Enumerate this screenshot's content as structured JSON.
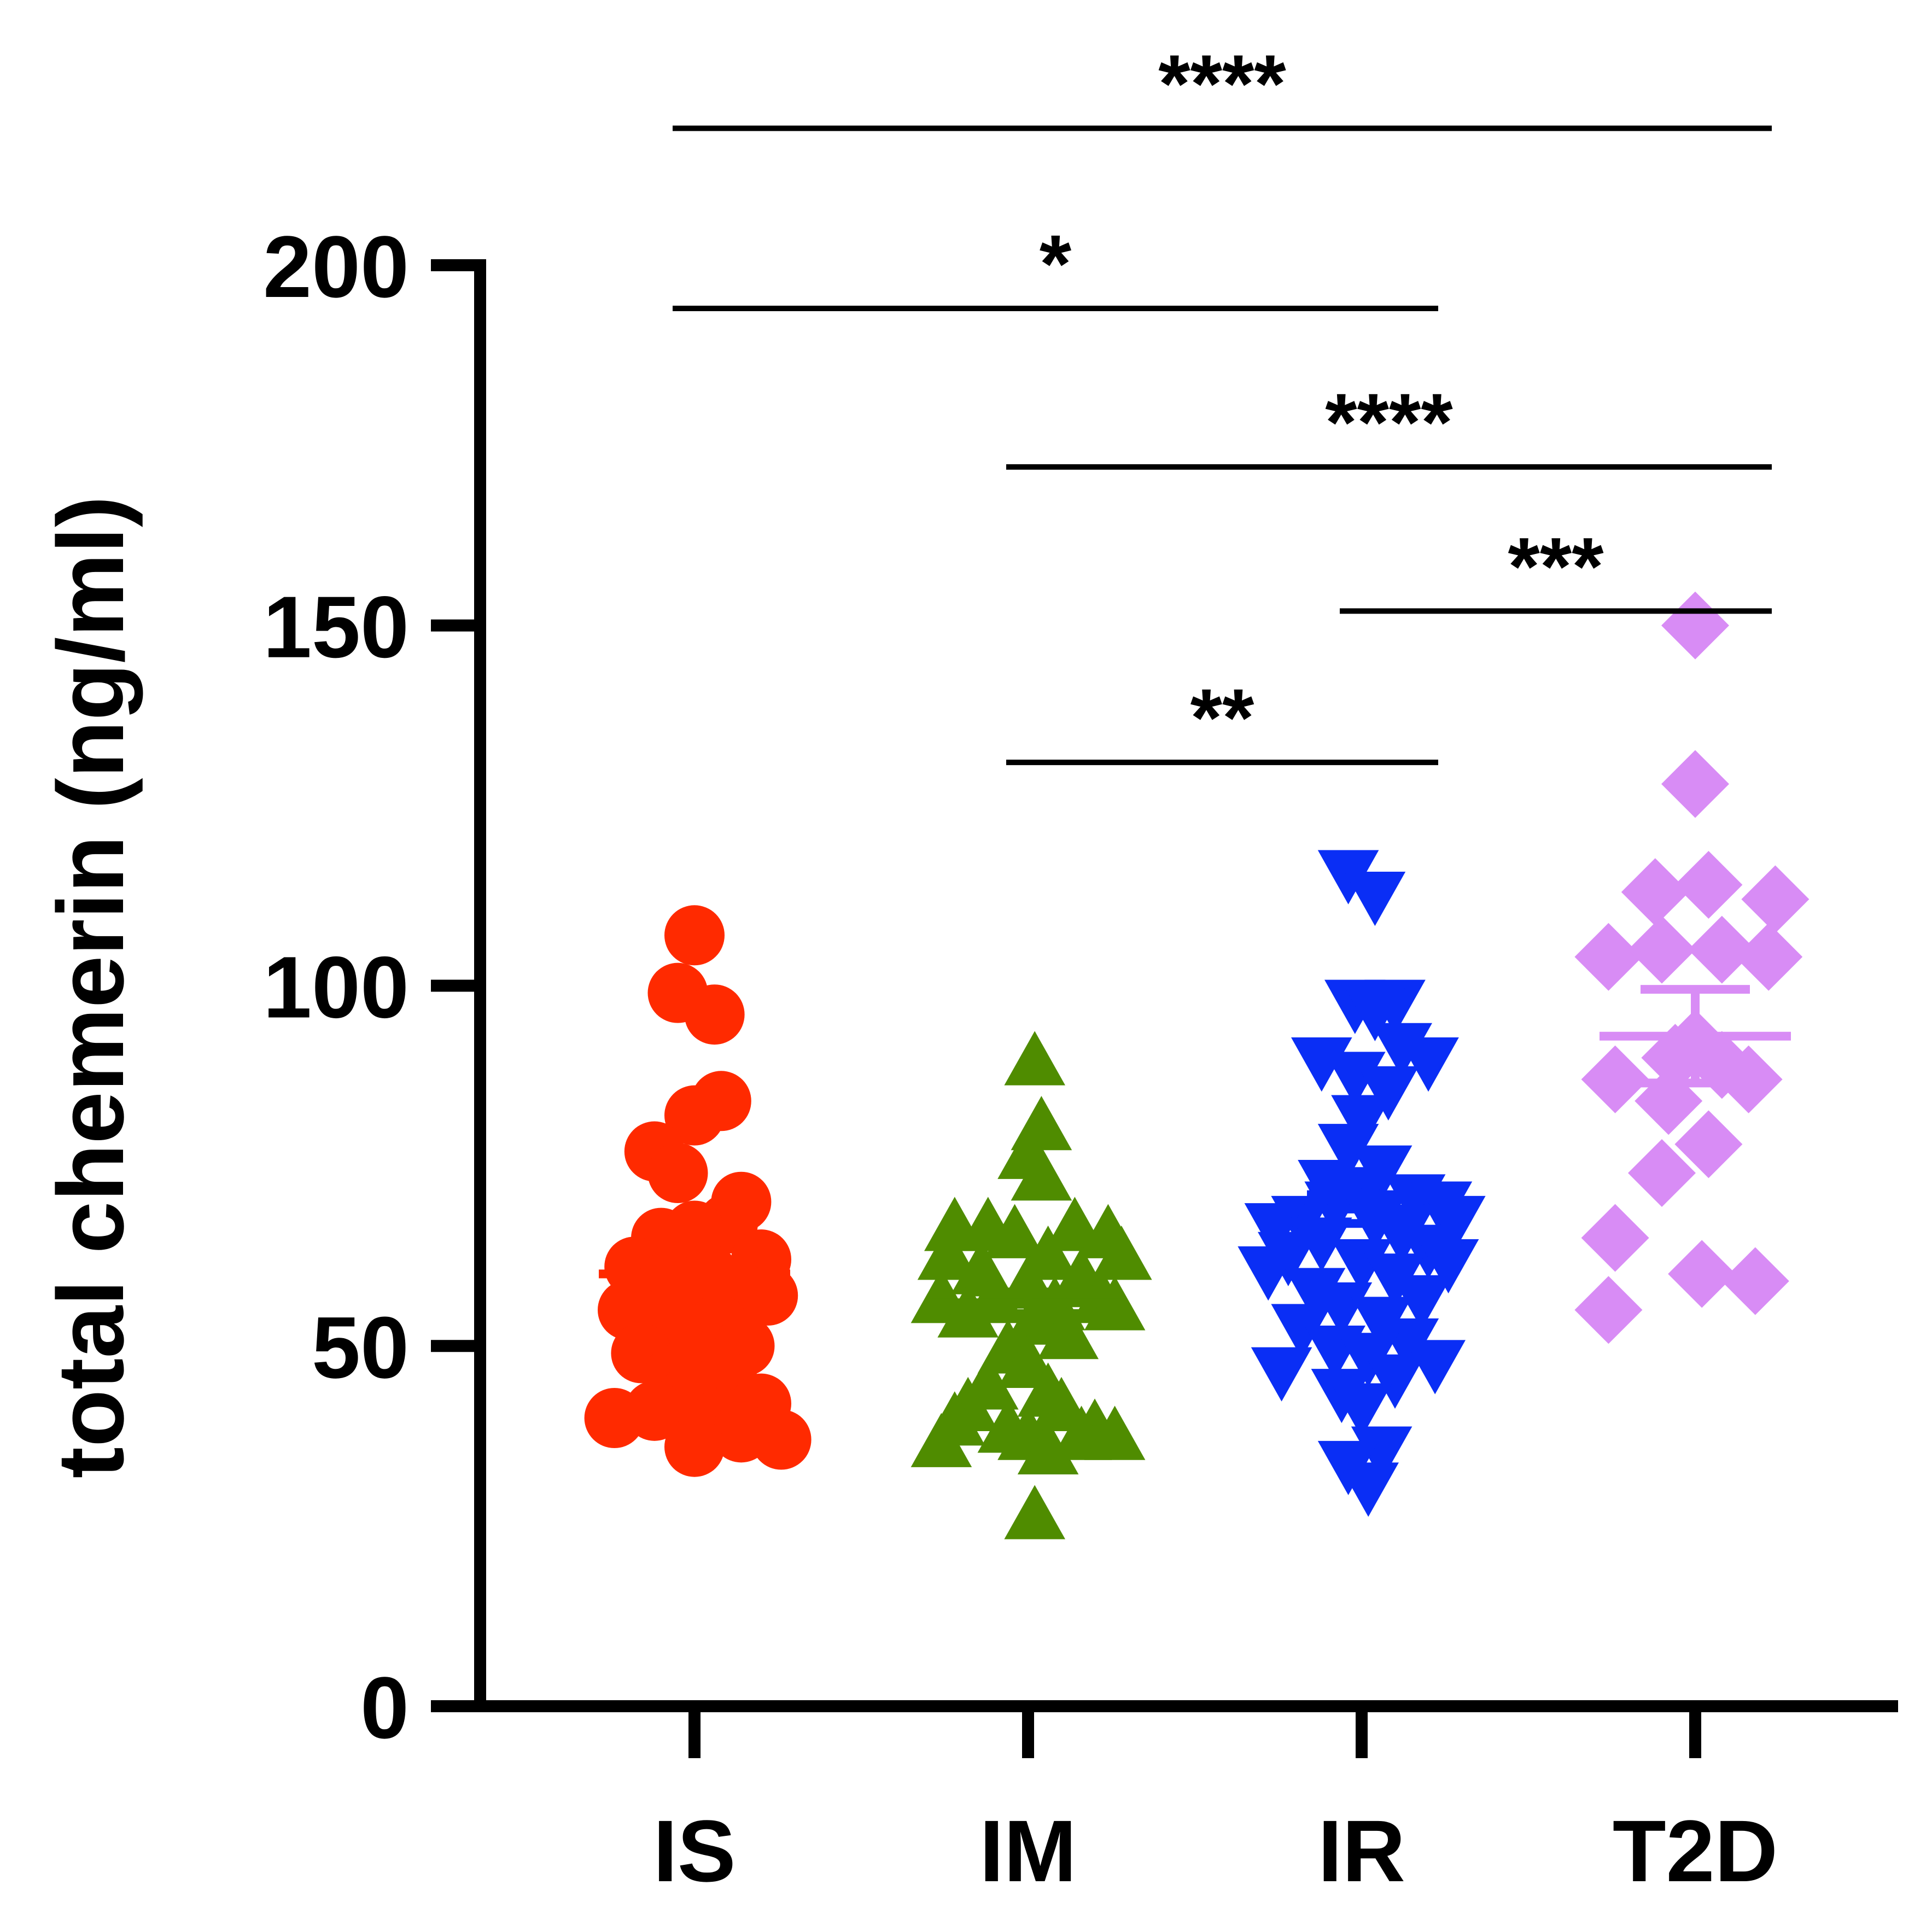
{
  "chart_data": {
    "type": "scatter",
    "ylabel": "total chemerin (ng/ml)",
    "xlabel": "",
    "ylim": [
      0,
      200
    ],
    "yticks": [
      0,
      50,
      100,
      150,
      200
    ],
    "categories": [
      "IS",
      "IM",
      "IR",
      "T2D"
    ],
    "series": [
      {
        "category": "IS",
        "marker": "circle",
        "color": "#ff2a00",
        "mean": 60,
        "sem": 1.5,
        "points": [
          {
            "x": 0.0,
            "y": 107
          },
          {
            "x": -0.05,
            "y": 99
          },
          {
            "x": 0.06,
            "y": 96
          },
          {
            "x": 0.08,
            "y": 84
          },
          {
            "x": 0.0,
            "y": 82
          },
          {
            "x": -0.12,
            "y": 77
          },
          {
            "x": -0.05,
            "y": 74
          },
          {
            "x": 0.14,
            "y": 70
          },
          {
            "x": 0.1,
            "y": 67
          },
          {
            "x": -0.1,
            "y": 65
          },
          {
            "x": 0.0,
            "y": 66
          },
          {
            "x": 0.2,
            "y": 62
          },
          {
            "x": -0.18,
            "y": 61
          },
          {
            "x": 0.04,
            "y": 60
          },
          {
            "x": -0.08,
            "y": 59
          },
          {
            "x": 0.14,
            "y": 58
          },
          {
            "x": -0.03,
            "y": 57
          },
          {
            "x": 0.22,
            "y": 57
          },
          {
            "x": -0.2,
            "y": 55
          },
          {
            "x": 0.07,
            "y": 53
          },
          {
            "x": -0.1,
            "y": 51
          },
          {
            "x": 0.15,
            "y": 50
          },
          {
            "x": -0.16,
            "y": 49
          },
          {
            "x": 0.0,
            "y": 48
          },
          {
            "x": -0.06,
            "y": 46
          },
          {
            "x": 0.1,
            "y": 45
          },
          {
            "x": -0.02,
            "y": 43
          },
          {
            "x": 0.2,
            "y": 42
          },
          {
            "x": -0.12,
            "y": 41
          },
          {
            "x": 0.08,
            "y": 40
          },
          {
            "x": -0.24,
            "y": 40
          },
          {
            "x": 0.14,
            "y": 38
          },
          {
            "x": 0.26,
            "y": 37
          },
          {
            "x": 0.0,
            "y": 36
          }
        ]
      },
      {
        "category": "IM",
        "marker": "triangle-up",
        "color": "#4f8c00",
        "mean": 56,
        "sem": 1.5,
        "points": [
          {
            "x": 0.02,
            "y": 89
          },
          {
            "x": 0.04,
            "y": 80
          },
          {
            "x": 0.0,
            "y": 76
          },
          {
            "x": 0.04,
            "y": 73
          },
          {
            "x": -0.22,
            "y": 66
          },
          {
            "x": -0.12,
            "y": 66
          },
          {
            "x": 0.14,
            "y": 66
          },
          {
            "x": 0.24,
            "y": 65
          },
          {
            "x": -0.04,
            "y": 65
          },
          {
            "x": -0.24,
            "y": 62
          },
          {
            "x": 0.28,
            "y": 62
          },
          {
            "x": 0.06,
            "y": 62
          },
          {
            "x": -0.14,
            "y": 60
          },
          {
            "x": 0.16,
            "y": 59
          },
          {
            "x": 0.0,
            "y": 58
          },
          {
            "x": -0.26,
            "y": 56
          },
          {
            "x": -0.1,
            "y": 56
          },
          {
            "x": 0.22,
            "y": 56
          },
          {
            "x": 0.08,
            "y": 55
          },
          {
            "x": 0.26,
            "y": 55
          },
          {
            "x": -0.18,
            "y": 54
          },
          {
            "x": 0.02,
            "y": 53
          },
          {
            "x": 0.12,
            "y": 51
          },
          {
            "x": -0.06,
            "y": 49
          },
          {
            "x": 0.0,
            "y": 47
          },
          {
            "x": -0.12,
            "y": 44
          },
          {
            "x": 0.06,
            "y": 43
          },
          {
            "x": -0.18,
            "y": 41
          },
          {
            "x": 0.1,
            "y": 41
          },
          {
            "x": -0.22,
            "y": 39
          },
          {
            "x": -0.06,
            "y": 38
          },
          {
            "x": 0.2,
            "y": 38
          },
          {
            "x": 0.0,
            "y": 37
          },
          {
            "x": 0.16,
            "y": 37
          },
          {
            "x": 0.26,
            "y": 37
          },
          {
            "x": -0.26,
            "y": 36
          },
          {
            "x": 0.06,
            "y": 35
          },
          {
            "x": 0.02,
            "y": 26
          }
        ]
      },
      {
        "category": "IR",
        "marker": "triangle-down",
        "color": "#0a2ef5",
        "mean": 69,
        "sem": 2.0,
        "points": [
          {
            "x": -0.04,
            "y": 116
          },
          {
            "x": 0.04,
            "y": 113
          },
          {
            "x": -0.02,
            "y": 98
          },
          {
            "x": 0.1,
            "y": 98
          },
          {
            "x": 0.04,
            "y": 97
          },
          {
            "x": 0.12,
            "y": 92
          },
          {
            "x": -0.12,
            "y": 90
          },
          {
            "x": 0.2,
            "y": 90
          },
          {
            "x": -0.02,
            "y": 88
          },
          {
            "x": 0.08,
            "y": 86
          },
          {
            "x": 0.0,
            "y": 82
          },
          {
            "x": -0.04,
            "y": 78
          },
          {
            "x": 0.06,
            "y": 75
          },
          {
            "x": -0.1,
            "y": 73
          },
          {
            "x": 0.0,
            "y": 72
          },
          {
            "x": 0.16,
            "y": 71
          },
          {
            "x": -0.08,
            "y": 70
          },
          {
            "x": 0.24,
            "y": 70
          },
          {
            "x": -0.18,
            "y": 68
          },
          {
            "x": 0.04,
            "y": 68
          },
          {
            "x": 0.28,
            "y": 68
          },
          {
            "x": -0.26,
            "y": 67
          },
          {
            "x": 0.12,
            "y": 66
          },
          {
            "x": -0.12,
            "y": 65
          },
          {
            "x": 0.2,
            "y": 64
          },
          {
            "x": -0.22,
            "y": 63
          },
          {
            "x": 0.0,
            "y": 62
          },
          {
            "x": 0.26,
            "y": 62
          },
          {
            "x": -0.28,
            "y": 61
          },
          {
            "x": 0.1,
            "y": 60
          },
          {
            "x": -0.14,
            "y": 58
          },
          {
            "x": 0.18,
            "y": 57
          },
          {
            "x": -0.06,
            "y": 56
          },
          {
            "x": 0.06,
            "y": 54
          },
          {
            "x": -0.18,
            "y": 53
          },
          {
            "x": 0.14,
            "y": 51
          },
          {
            "x": -0.08,
            "y": 50
          },
          {
            "x": 0.02,
            "y": 49
          },
          {
            "x": 0.22,
            "y": 48
          },
          {
            "x": -0.24,
            "y": 47
          },
          {
            "x": 0.1,
            "y": 46
          },
          {
            "x": -0.06,
            "y": 44
          },
          {
            "x": 0.0,
            "y": 42
          },
          {
            "x": 0.06,
            "y": 36
          },
          {
            "x": -0.04,
            "y": 34
          },
          {
            "x": 0.02,
            "y": 31
          }
        ]
      },
      {
        "category": "T2D",
        "marker": "diamond",
        "color": "#d88cf5",
        "mean": 93,
        "sem": 6.5,
        "points": [
          {
            "x": 0.0,
            "y": 150
          },
          {
            "x": 0.0,
            "y": 128
          },
          {
            "x": -0.12,
            "y": 113
          },
          {
            "x": 0.04,
            "y": 114
          },
          {
            "x": 0.24,
            "y": 112
          },
          {
            "x": -0.26,
            "y": 104
          },
          {
            "x": -0.1,
            "y": 105
          },
          {
            "x": 0.08,
            "y": 105
          },
          {
            "x": 0.22,
            "y": 104
          },
          {
            "x": 0.0,
            "y": 92
          },
          {
            "x": -0.06,
            "y": 90
          },
          {
            "x": 0.08,
            "y": 89
          },
          {
            "x": -0.24,
            "y": 87
          },
          {
            "x": 0.16,
            "y": 87
          },
          {
            "x": -0.08,
            "y": 84
          },
          {
            "x": 0.04,
            "y": 78
          },
          {
            "x": -0.1,
            "y": 74
          },
          {
            "x": -0.24,
            "y": 65
          },
          {
            "x": 0.02,
            "y": 60
          },
          {
            "x": 0.18,
            "y": 59
          },
          {
            "x": -0.26,
            "y": 55
          }
        ]
      }
    ],
    "significance": [
      {
        "from": 0,
        "to": 3,
        "y": 219,
        "label": "****"
      },
      {
        "from": 0,
        "to": 2,
        "y": 194,
        "label": "*"
      },
      {
        "from": 1,
        "to": 3,
        "y": 172,
        "label": "****"
      },
      {
        "from": 2,
        "to": 3,
        "y": 152,
        "label": "***"
      },
      {
        "from": 1,
        "to": 2,
        "y": 131,
        "label": "**"
      }
    ]
  }
}
